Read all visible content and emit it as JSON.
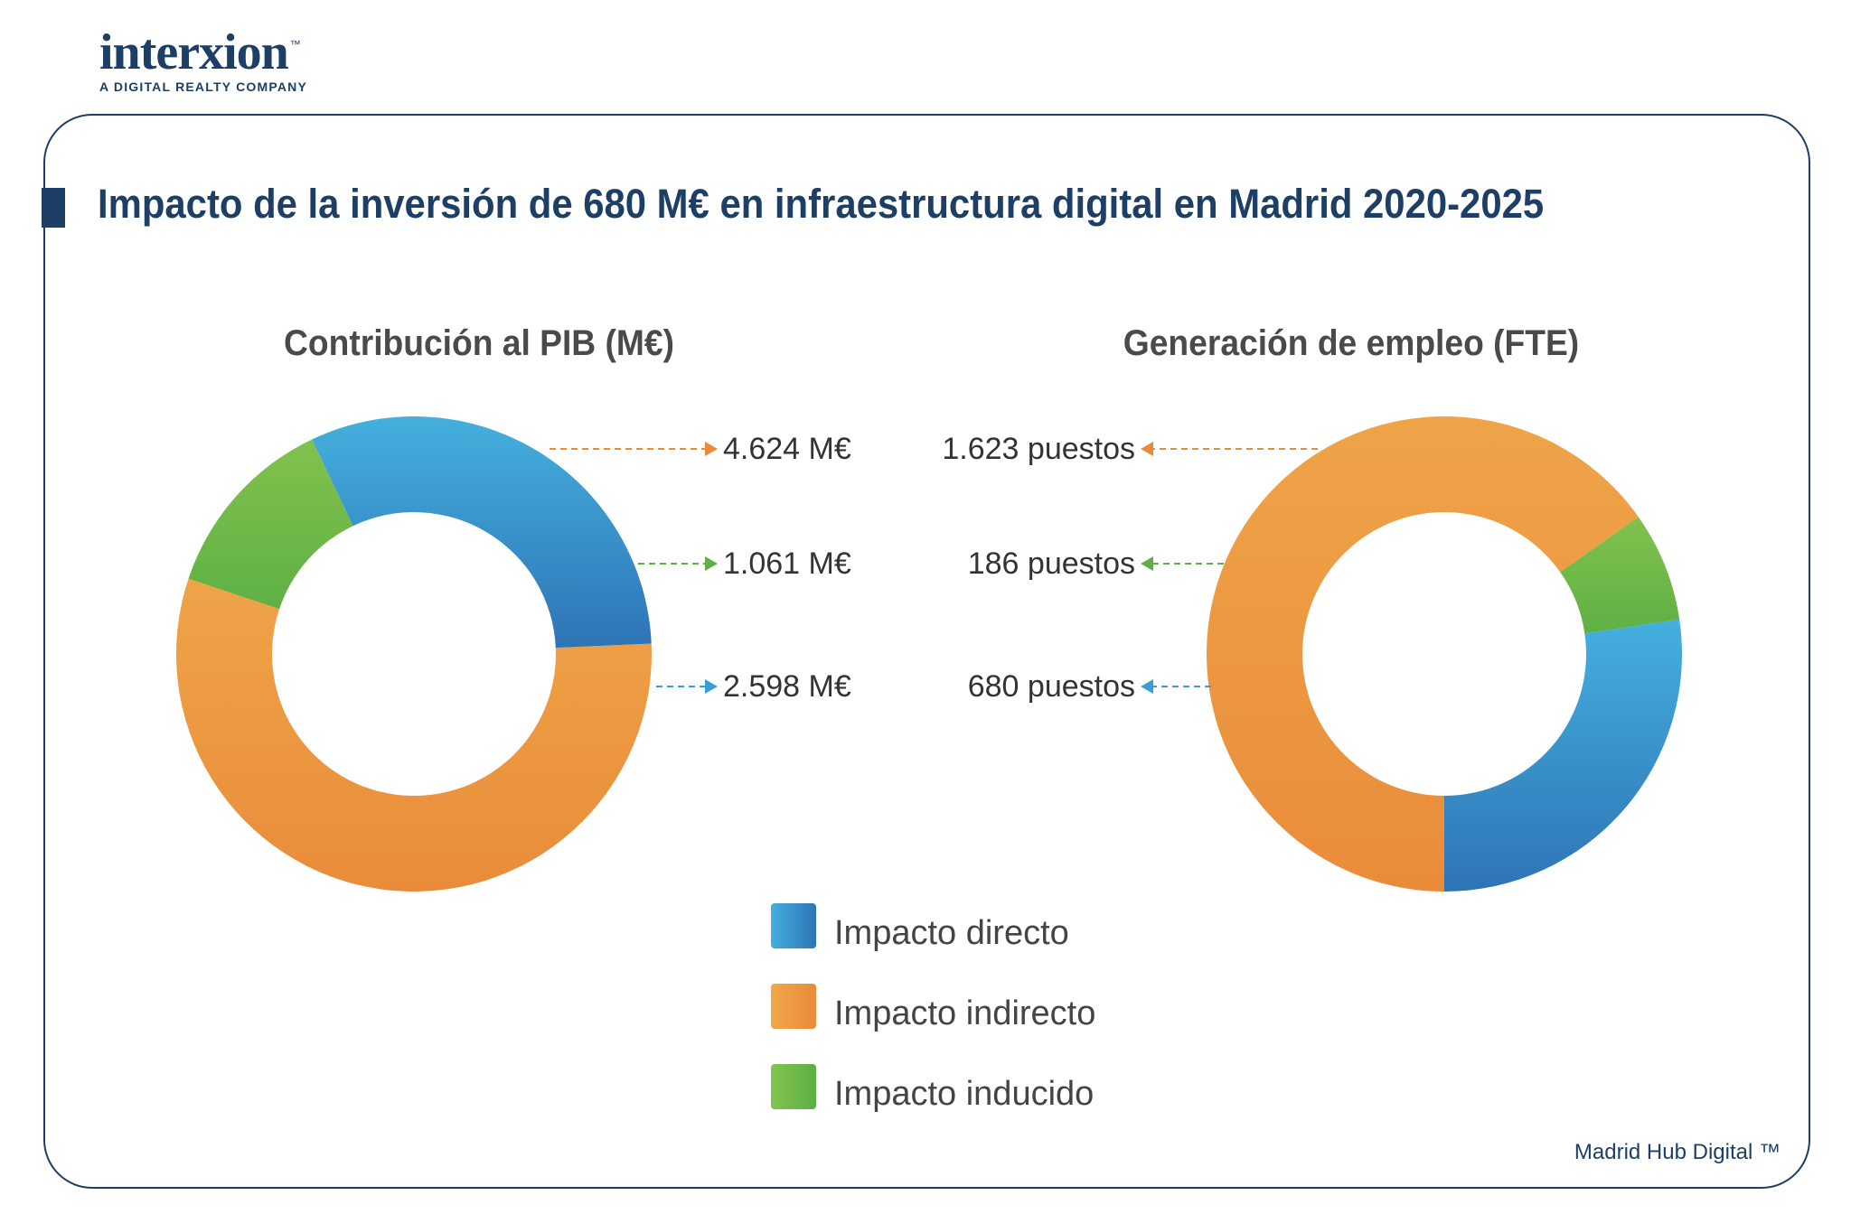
{
  "brand": {
    "logo_word": "interxion",
    "logo_tm": "™",
    "logo_sub": "A DIGITAL REALTY COMPANY"
  },
  "title": "Impacto de la inversión de 680 M€ en infraestructura digital en Madrid 2020-2025",
  "footer": "Madrid Hub Digital ™",
  "colors": {
    "brand_navy": "#1d3f66",
    "directo": "#3a96d0",
    "indirecto": "#ee9a45",
    "inducido": "#70b84a"
  },
  "legend": [
    {
      "key": "directo",
      "label": "Impacto directo"
    },
    {
      "key": "indirecto",
      "label": "Impacto indirecto"
    },
    {
      "key": "inducido",
      "label": "Impacto inducido"
    }
  ],
  "chart_data": [
    {
      "type": "pie",
      "variant": "donut",
      "title": "Contribución al PIB (M€)",
      "unit": "M€",
      "slices": [
        {
          "key": "indirecto",
          "name": "Impacto indirecto",
          "value": 4624,
          "label": "4.624 M€"
        },
        {
          "key": "inducido",
          "name": "Impacto inducido",
          "value": 1061,
          "label": "1.061 M€"
        },
        {
          "key": "directo",
          "name": "Impacto directo",
          "value": 2598,
          "label": "2.598 M€"
        }
      ]
    },
    {
      "type": "pie",
      "variant": "donut",
      "title": "Generación de empleo (FTE)",
      "unit": "puestos",
      "slices": [
        {
          "key": "indirecto",
          "name": "Impacto indirecto",
          "value": 1623,
          "label": "1.623 puestos"
        },
        {
          "key": "inducido",
          "name": "Impacto inducido",
          "value": 186,
          "label": "186 puestos"
        },
        {
          "key": "directo",
          "name": "Impacto directo",
          "value": 680,
          "label": "680 puestos"
        }
      ]
    }
  ]
}
